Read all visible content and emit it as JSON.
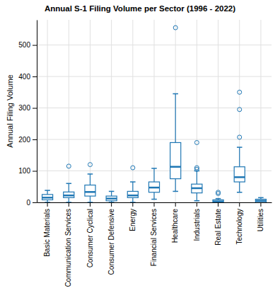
{
  "chart_data": {
    "type": "box",
    "title": "Annual S-1 Filing Volume per Sector (1996 - 2022)",
    "y_label": "Annual Filing Volume",
    "categories": [
      "Basic Materials",
      "Communication Services",
      "Consumer Cyclical",
      "Consumer Defensive",
      "Energy",
      "Financial Services",
      "Healthcare",
      "Industrials",
      "Real Estate",
      "Technology",
      "Utilities"
    ],
    "values": [
      {
        "whislo": 0,
        "q1": 8,
        "med": 15,
        "q3": 25,
        "whishi": 38,
        "fliers": []
      },
      {
        "whislo": 0,
        "q1": 15,
        "med": 22,
        "q3": 33,
        "whishi": 60,
        "fliers": [
          115
        ]
      },
      {
        "whislo": 0,
        "q1": 20,
        "med": 33,
        "q3": 55,
        "whishi": 90,
        "fliers": [
          120
        ]
      },
      {
        "whislo": 0,
        "q1": 5,
        "med": 12,
        "q3": 20,
        "whishi": 35,
        "fliers": []
      },
      {
        "whislo": 0,
        "q1": 15,
        "med": 22,
        "q3": 35,
        "whishi": 65,
        "fliers": [
          110
        ]
      },
      {
        "whislo": 10,
        "q1": 32,
        "med": 47,
        "q3": 65,
        "whishi": 108,
        "fliers": []
      },
      {
        "whislo": 35,
        "q1": 75,
        "med": 113,
        "q3": 190,
        "whishi": 345,
        "fliers": [
          555
        ]
      },
      {
        "whislo": 5,
        "q1": 30,
        "med": 45,
        "q3": 58,
        "whishi": 100,
        "fliers": [
          105,
          110,
          190
        ]
      },
      {
        "whislo": 0,
        "q1": 0,
        "med": 3,
        "q3": 8,
        "whishi": 12,
        "fliers": [
          28,
          32
        ]
      },
      {
        "whislo": 32,
        "q1": 65,
        "med": 80,
        "q3": 113,
        "whishi": 175,
        "fliers": [
          207,
          295,
          350
        ]
      },
      {
        "whislo": 0,
        "q1": 0,
        "med": 5,
        "q3": 10,
        "whishi": 15,
        "fliers": []
      }
    ],
    "color": "#1f77b4",
    "ylim": [
      0,
      580
    ],
    "yticks": [
      0,
      100,
      200,
      300,
      400,
      500
    ],
    "grid": true
  }
}
